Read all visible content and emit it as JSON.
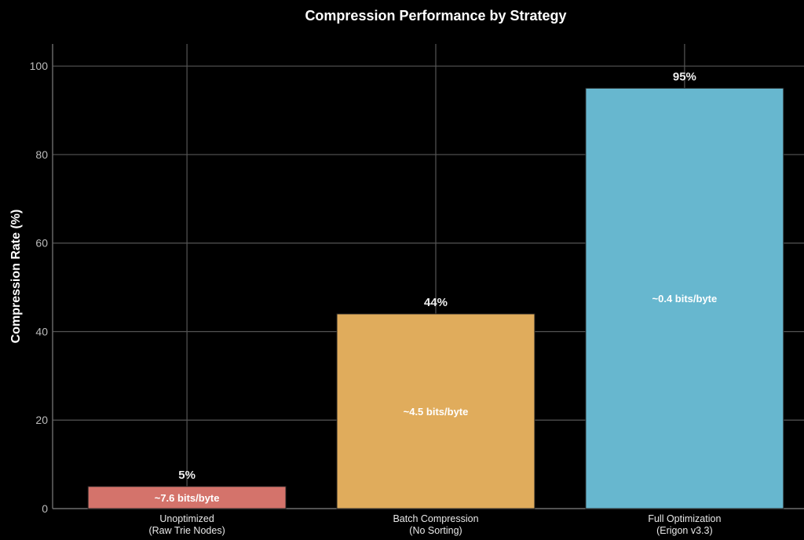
{
  "chart_data": {
    "type": "bar",
    "title": "Compression Performance by Strategy",
    "xlabel": "",
    "ylabel": "Compression Rate (%)",
    "ylim": [
      0,
      105
    ],
    "yticks": [
      0,
      20,
      40,
      60,
      80,
      100
    ],
    "grid": true,
    "categories": [
      [
        "Unoptimized",
        "(Raw Trie Nodes)"
      ],
      [
        "Batch Compression",
        "(No Sorting)"
      ],
      [
        "Full Optimization",
        "(Erigon v3.3)"
      ]
    ],
    "values": [
      5,
      44,
      95
    ],
    "value_labels": [
      "5%",
      "44%",
      "95%"
    ],
    "inner_labels": [
      "~7.6 bits/byte",
      "~4.5 bits/byte",
      "~0.4 bits/byte"
    ],
    "colors": [
      "#d4736b",
      "#e0ac5c",
      "#67b7cf"
    ],
    "background": "#000000"
  }
}
